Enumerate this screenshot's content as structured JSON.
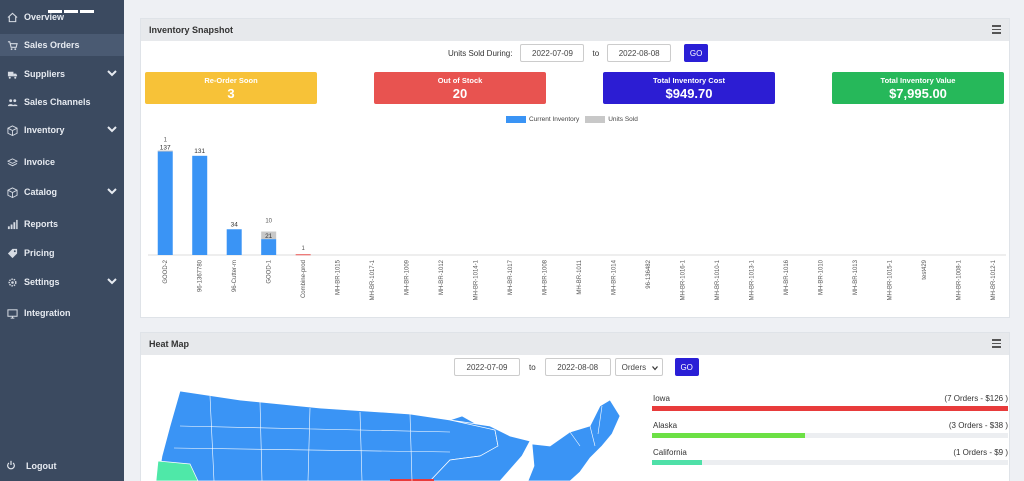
{
  "sidebar": {
    "items": [
      {
        "label": "Overview",
        "icon": "home-icon"
      },
      {
        "label": "Sales Orders",
        "icon": "cart-icon"
      },
      {
        "label": "Suppliers",
        "icon": "truck-icon"
      },
      {
        "label": "Sales Channels",
        "icon": "users-icon"
      },
      {
        "label": "Inventory",
        "icon": "box-icon"
      },
      {
        "label": "Invoice",
        "icon": "stack-icon"
      },
      {
        "label": "Catalog",
        "icon": "box-icon"
      },
      {
        "label": "Reports",
        "icon": "bar-chart-icon"
      },
      {
        "label": "Pricing",
        "icon": "tag-icon"
      },
      {
        "label": "Settings",
        "icon": "gear-icon"
      },
      {
        "label": "Integration",
        "icon": "monitor-icon"
      }
    ],
    "logout_label": "Logout"
  },
  "snapshot": {
    "title": "Inventory Snapshot",
    "units_sold_label": "Units Sold During:",
    "from_date": "2022-07-09",
    "to_label": "to",
    "to_date": "2022-08-08",
    "go_label": "GO",
    "cards": [
      {
        "label": "Re-Order Soon",
        "value": "3",
        "color": "#f7c238"
      },
      {
        "label": "Out of Stock",
        "value": "20",
        "color": "#e85350"
      },
      {
        "label": "Total Inventory Cost",
        "value": "$949.70",
        "color": "#2c1dd3"
      },
      {
        "label": "Total Inventory Value",
        "value": "$7,995.00",
        "color": "#26b85a"
      }
    ]
  },
  "chart_data": {
    "type": "bar",
    "stacked": true,
    "categories": [
      "GOOD-2",
      "96-1367780",
      "96-Cutter-m",
      "GOOD-1",
      "Combine-prod",
      "MH-BR-1015",
      "MH-BR-1017-1",
      "MH-BR-1009",
      "MH-BR-1012",
      "MH-BR-1014-1",
      "MH-BR-1017",
      "MH-BR-1008",
      "MH-BR-1011",
      "MH-BR-1014",
      "96-136482",
      "MH-BR-1016-1",
      "MH-BR-1010-1",
      "MH-BR-1013-1",
      "MH-BR-1016",
      "MH-BR-1010",
      "MH-BR-1013",
      "MH-BR-1015-1",
      "test429",
      "MH-BR-1008-1",
      "MH-BR-1012-1"
    ],
    "series": [
      {
        "name": "Current Inventory",
        "color": "#3a94f5",
        "values": [
          137,
          131,
          34,
          21,
          0,
          0,
          0,
          0,
          0,
          0,
          0,
          0,
          0,
          0,
          0,
          0,
          0,
          0,
          0,
          0,
          0,
          0,
          0,
          0,
          0
        ]
      },
      {
        "name": "Units Sold",
        "color": "#c8c8c8",
        "values": [
          1,
          0,
          0,
          10,
          1,
          0,
          0,
          0,
          0,
          0,
          0,
          0,
          0,
          0,
          0,
          0,
          0,
          0,
          0,
          0,
          0,
          0,
          0,
          0,
          0
        ]
      }
    ],
    "data_labels": {
      "inventory": [
        "137",
        "131",
        "34",
        "21",
        "",
        "",
        "",
        "",
        "",
        "",
        "",
        "",
        "",
        "",
        "",
        "",
        "",
        "",
        "",
        "",
        "",
        "",
        "",
        "",
        ""
      ],
      "sold": [
        "1",
        "",
        "",
        "10",
        "1",
        "",
        "",
        "",
        "",
        "",
        "",
        "",
        "",
        "",
        "",
        "",
        "",
        "",
        "",
        "",
        "",
        "",
        "",
        "",
        ""
      ]
    },
    "grid": false,
    "legend": "top-center",
    "ylim": [
      0,
      140
    ]
  },
  "heatmap": {
    "title": "Heat Map",
    "from_date": "2022-07-09",
    "to_label": "to",
    "to_date": "2022-08-08",
    "metric": "Orders",
    "go_label": "GO",
    "rows": [
      {
        "name": "Iowa",
        "meta": "(7 Orders - $126 )",
        "fraction": 1.0,
        "color": "#e83b3b"
      },
      {
        "name": "Alaska",
        "meta": "(3 Orders - $38 )",
        "fraction": 0.43,
        "color": "#6ce045"
      },
      {
        "name": "California",
        "meta": "(1 Orders - $9 )",
        "fraction": 0.14,
        "color": "#4fe0a8"
      }
    ]
  }
}
